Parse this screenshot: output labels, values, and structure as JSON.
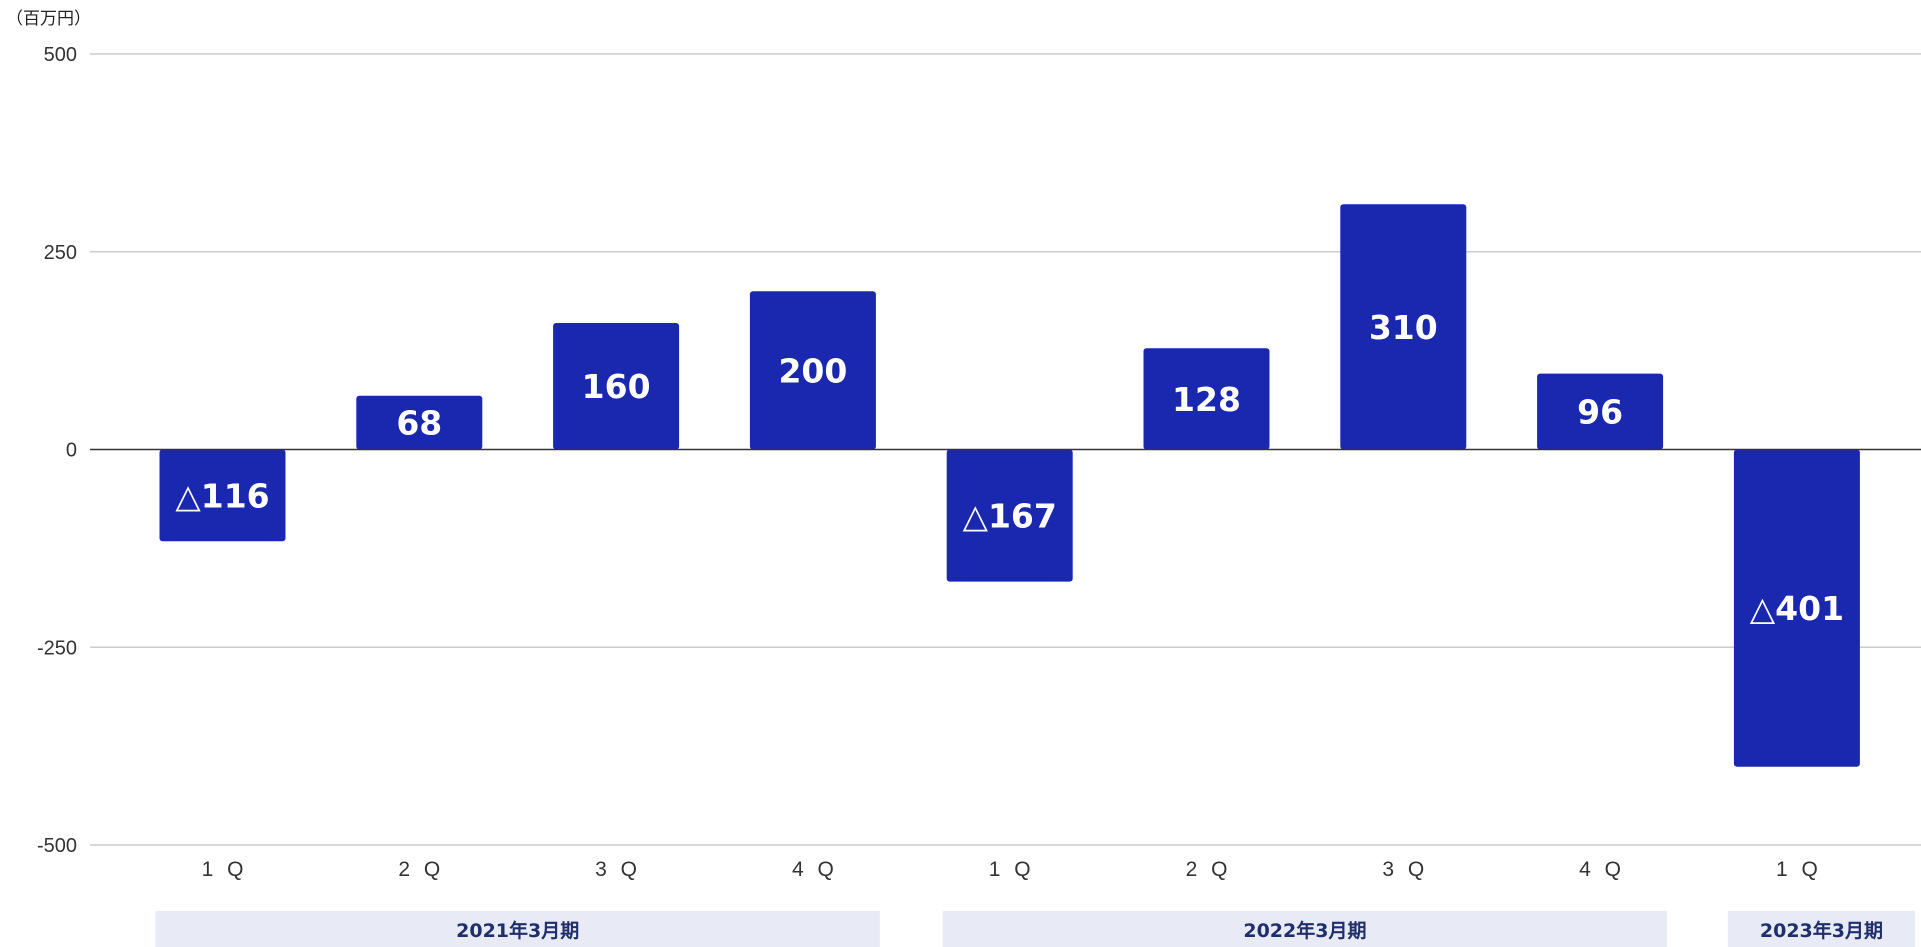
{
  "chart_data": {
    "type": "bar",
    "unit_label": "（百万円）",
    "categories": [
      "1Q",
      "2Q",
      "3Q",
      "4Q",
      "1Q",
      "2Q",
      "3Q",
      "4Q",
      "1Q"
    ],
    "category_labels": [
      "1 Q",
      "2 Q",
      "3 Q",
      "4 Q",
      "1 Q",
      "2 Q",
      "3 Q",
      "4 Q",
      "1 Q"
    ],
    "values": [
      -116,
      68,
      160,
      200,
      -167,
      128,
      310,
      96,
      -401
    ],
    "data_labels": [
      "△116",
      "68",
      "160",
      "200",
      "△167",
      "128",
      "310",
      "96",
      "△401"
    ],
    "periods": [
      {
        "label": "2021年3月期",
        "categories": [
          0,
          3
        ]
      },
      {
        "label": "2022年3月期",
        "categories": [
          4,
          7
        ]
      },
      {
        "label": "2023年3月期",
        "categories": [
          8,
          8
        ]
      }
    ],
    "ylim": [
      -500,
      500
    ],
    "yticks": [
      500,
      250,
      0,
      -250,
      -500
    ],
    "ytick_labels": [
      "500",
      "250",
      "0",
      "-250",
      "-500"
    ],
    "grid": true,
    "legend": "none",
    "bar_color": "#1a28b0",
    "period_band_color": "#e8eaf5",
    "period_text_color": "#1e2f6b",
    "gridline_color": "#cccccc",
    "zero_line_color": "#333333"
  }
}
